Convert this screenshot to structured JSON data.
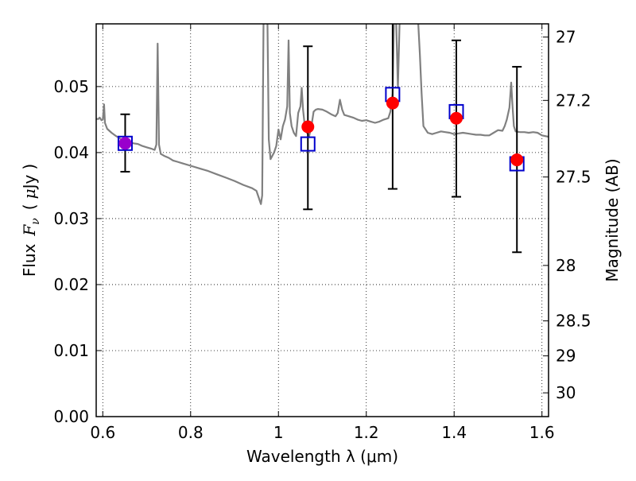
{
  "chart_data": {
    "type": "scatter",
    "title": "",
    "xlabel": "Wavelength  λ (μm)",
    "ylabel_text": "Flux",
    "ylabel_symbol": "F",
    "ylabel_symbol_sub": "ν",
    "ylabel_units_open": "(",
    "ylabel_units_mu": "μ",
    "ylabel_units_rest": "Jy",
    "ylabel_units_close": ")",
    "y2label": "Magnitude (AB)",
    "xlim": [
      0.585,
      1.615
    ],
    "ylim": [
      0.0,
      0.0595
    ],
    "grid": true,
    "x_ticks": [
      {
        "value": 0.6,
        "label": "0.6"
      },
      {
        "value": 0.8,
        "label": "0.8"
      },
      {
        "value": 1.0,
        "label": "1"
      },
      {
        "value": 1.2,
        "label": "1.2"
      },
      {
        "value": 1.4,
        "label": "1.4"
      },
      {
        "value": 1.6,
        "label": "1.6"
      }
    ],
    "y_ticks": [
      {
        "value": 0.0,
        "label": "0.00"
      },
      {
        "value": 0.01,
        "label": "0.01"
      },
      {
        "value": 0.02,
        "label": "0.02"
      },
      {
        "value": 0.03,
        "label": "0.03"
      },
      {
        "value": 0.04,
        "label": "0.04"
      },
      {
        "value": 0.05,
        "label": "0.05"
      }
    ],
    "y2_ticks": [
      {
        "flux": 0.0575,
        "label": "27"
      },
      {
        "flux": 0.0479,
        "label": "27.2"
      },
      {
        "flux": 0.0363,
        "label": "27.5"
      },
      {
        "flux": 0.0229,
        "label": "28"
      },
      {
        "flux": 0.0145,
        "label": "28.5"
      },
      {
        "flux": 0.0092,
        "label": "29"
      },
      {
        "flux": 0.0036,
        "label": "30"
      }
    ],
    "series": [
      {
        "kind": "observed",
        "marker": "red filled circle",
        "color": "#ff0000",
        "points": [
          {
            "x": 0.651,
            "y": 0.0414,
            "yerr_low": 0.0371,
            "yerr_high": 0.0458
          },
          {
            "x": 1.067,
            "y": 0.0439,
            "yerr_low": 0.0314,
            "yerr_high": 0.0561
          },
          {
            "x": 1.26,
            "y": 0.0475,
            "yerr_low": 0.0345,
            "yerr_high": 0.06
          },
          {
            "x": 1.405,
            "y": 0.0452,
            "yerr_low": 0.0333,
            "yerr_high": 0.057
          },
          {
            "x": 1.543,
            "y": 0.0389,
            "yerr_low": 0.0249,
            "yerr_high": 0.053
          }
        ]
      },
      {
        "kind": "model",
        "marker": "blue open square",
        "color": "#0000cc",
        "points": [
          {
            "x": 0.651,
            "y": 0.0414
          },
          {
            "x": 1.067,
            "y": 0.0413
          },
          {
            "x": 1.26,
            "y": 0.0488
          },
          {
            "x": 1.405,
            "y": 0.0462
          },
          {
            "x": 1.543,
            "y": 0.0383
          }
        ]
      },
      {
        "kind": "spectrum",
        "marker": "gray line",
        "color": "#808080",
        "points": [
          [
            0.585,
            0.0451
          ],
          [
            0.59,
            0.0451
          ],
          [
            0.593,
            0.0453
          ],
          [
            0.597,
            0.0449
          ],
          [
            0.6,
            0.045
          ],
          [
            0.603,
            0.0473
          ],
          [
            0.605,
            0.0445
          ],
          [
            0.61,
            0.0436
          ],
          [
            0.62,
            0.043
          ],
          [
            0.63,
            0.0425
          ],
          [
            0.64,
            0.0421
          ],
          [
            0.65,
            0.0418
          ],
          [
            0.66,
            0.0416
          ],
          [
            0.67,
            0.0414
          ],
          [
            0.68,
            0.0413
          ],
          [
            0.69,
            0.041
          ],
          [
            0.7,
            0.0408
          ],
          [
            0.71,
            0.0406
          ],
          [
            0.718,
            0.0404
          ],
          [
            0.722,
            0.0412
          ],
          [
            0.725,
            0.0565
          ],
          [
            0.728,
            0.0412
          ],
          [
            0.732,
            0.0398
          ],
          [
            0.74,
            0.0395
          ],
          [
            0.75,
            0.0392
          ],
          [
            0.76,
            0.0388
          ],
          [
            0.77,
            0.0386
          ],
          [
            0.78,
            0.0384
          ],
          [
            0.8,
            0.038
          ],
          [
            0.82,
            0.0376
          ],
          [
            0.84,
            0.0372
          ],
          [
            0.86,
            0.0367
          ],
          [
            0.88,
            0.0362
          ],
          [
            0.9,
            0.0357
          ],
          [
            0.92,
            0.0351
          ],
          [
            0.94,
            0.0346
          ],
          [
            0.95,
            0.0342
          ],
          [
            0.955,
            0.0332
          ],
          [
            0.96,
            0.0322
          ],
          [
            0.963,
            0.0335
          ],
          [
            0.966,
            0.06
          ],
          [
            0.97,
            0.06
          ],
          [
            0.975,
            0.06
          ],
          [
            0.978,
            0.042
          ],
          [
            0.982,
            0.039
          ],
          [
            0.99,
            0.04
          ],
          [
            0.995,
            0.041
          ],
          [
            1.0,
            0.0435
          ],
          [
            1.005,
            0.042
          ],
          [
            1.01,
            0.044
          ],
          [
            1.015,
            0.045
          ],
          [
            1.02,
            0.047
          ],
          [
            1.023,
            0.057
          ],
          [
            1.026,
            0.046
          ],
          [
            1.03,
            0.044
          ],
          [
            1.035,
            0.043
          ],
          [
            1.04,
            0.0425
          ],
          [
            1.045,
            0.046
          ],
          [
            1.05,
            0.047
          ],
          [
            1.053,
            0.0498
          ],
          [
            1.056,
            0.0465
          ],
          [
            1.06,
            0.044
          ],
          [
            1.065,
            0.043
          ],
          [
            1.07,
            0.0425
          ],
          [
            1.075,
            0.044
          ],
          [
            1.08,
            0.0462
          ],
          [
            1.085,
            0.0465
          ],
          [
            1.09,
            0.0466
          ],
          [
            1.1,
            0.0465
          ],
          [
            1.11,
            0.0462
          ],
          [
            1.12,
            0.0458
          ],
          [
            1.13,
            0.0455
          ],
          [
            1.135,
            0.046
          ],
          [
            1.14,
            0.048
          ],
          [
            1.145,
            0.0465
          ],
          [
            1.15,
            0.0457
          ],
          [
            1.16,
            0.0455
          ],
          [
            1.17,
            0.0453
          ],
          [
            1.18,
            0.045
          ],
          [
            1.19,
            0.0448
          ],
          [
            1.2,
            0.0449
          ],
          [
            1.21,
            0.0447
          ],
          [
            1.22,
            0.0445
          ],
          [
            1.23,
            0.0447
          ],
          [
            1.24,
            0.045
          ],
          [
            1.25,
            0.0452
          ],
          [
            1.255,
            0.0462
          ],
          [
            1.26,
            0.049
          ],
          [
            1.263,
            0.06
          ],
          [
            1.268,
            0.06
          ],
          [
            1.272,
            0.0498
          ],
          [
            1.276,
            0.06
          ],
          [
            1.28,
            0.06
          ],
          [
            1.29,
            0.06
          ],
          [
            1.3,
            0.06
          ],
          [
            1.31,
            0.06
          ],
          [
            1.318,
            0.06
          ],
          [
            1.322,
            0.055
          ],
          [
            1.326,
            0.049
          ],
          [
            1.33,
            0.044
          ],
          [
            1.34,
            0.043
          ],
          [
            1.35,
            0.0428
          ],
          [
            1.36,
            0.043
          ],
          [
            1.37,
            0.0432
          ],
          [
            1.38,
            0.0431
          ],
          [
            1.39,
            0.043
          ],
          [
            1.4,
            0.0428
          ],
          [
            1.41,
            0.0429
          ],
          [
            1.42,
            0.043
          ],
          [
            1.43,
            0.0429
          ],
          [
            1.44,
            0.0428
          ],
          [
            1.45,
            0.0427
          ],
          [
            1.46,
            0.0427
          ],
          [
            1.47,
            0.0426
          ],
          [
            1.48,
            0.0426
          ],
          [
            1.49,
            0.043
          ],
          [
            1.5,
            0.0434
          ],
          [
            1.51,
            0.0433
          ],
          [
            1.515,
            0.044
          ],
          [
            1.52,
            0.045
          ],
          [
            1.526,
            0.0468
          ],
          [
            1.53,
            0.0506
          ],
          [
            1.533,
            0.047
          ],
          [
            1.536,
            0.044
          ],
          [
            1.54,
            0.0432
          ],
          [
            1.55,
            0.0431
          ],
          [
            1.56,
            0.0431
          ],
          [
            1.57,
            0.043
          ],
          [
            1.58,
            0.0431
          ],
          [
            1.59,
            0.043
          ],
          [
            1.6,
            0.0426
          ],
          [
            1.615,
            0.0424
          ]
        ]
      }
    ]
  }
}
